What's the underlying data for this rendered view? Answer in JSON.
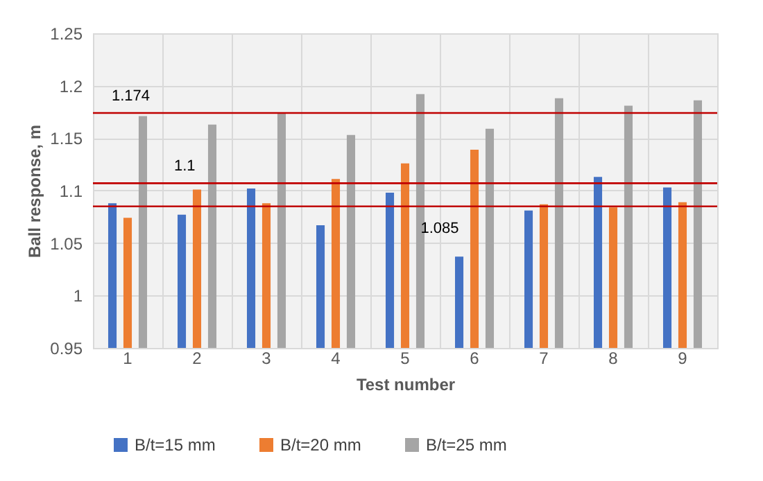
{
  "chart_data": {
    "type": "bar",
    "xlabel": "Test number",
    "ylabel": "Ball response, m",
    "categories": [
      "1",
      "2",
      "3",
      "4",
      "5",
      "6",
      "7",
      "8",
      "9"
    ],
    "series": [
      {
        "name": "B/t=15 mm",
        "color": "#4472c4",
        "values": [
          1.088,
          1.077,
          1.102,
          1.067,
          1.098,
          1.037,
          1.081,
          1.113,
          1.103
        ]
      },
      {
        "name": "B/t=20 mm",
        "color": "#ed7d31",
        "values": [
          1.074,
          1.101,
          1.088,
          1.111,
          1.126,
          1.139,
          1.087,
          1.084,
          1.089
        ]
      },
      {
        "name": "B/t=25 mm",
        "color": "#a5a5a5",
        "values": [
          1.171,
          1.163,
          1.174,
          1.153,
          1.192,
          1.159,
          1.188,
          1.181,
          1.186
        ]
      }
    ],
    "ylim": [
      0.95,
      1.25
    ],
    "yticks": [
      0.95,
      1,
      1.05,
      1.1,
      1.15,
      1.2,
      1.25
    ],
    "ref_lines": [
      {
        "axis": "y",
        "value": 1.174,
        "label": "1.174",
        "color": "#c00000"
      },
      {
        "axis": "y",
        "value": 1.107,
        "label": "1.1",
        "color": "#c00000"
      },
      {
        "axis": "y",
        "value": 1.085,
        "label": "1.085",
        "color": "#c00000"
      }
    ],
    "grid": true,
    "legend": "bottom"
  }
}
